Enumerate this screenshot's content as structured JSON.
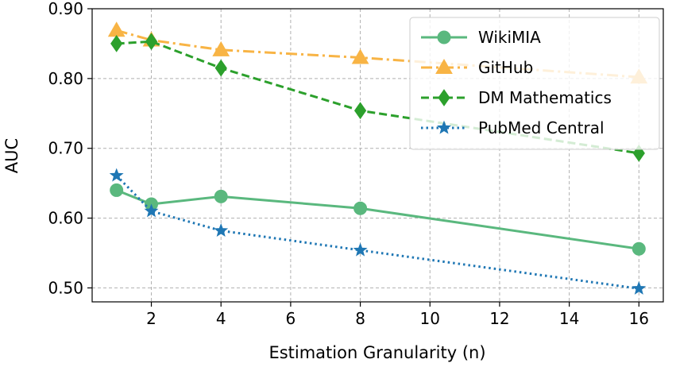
{
  "chart_data": {
    "type": "line",
    "title": "",
    "xlabel": "Estimation Granularity (n)",
    "ylabel": "AUC",
    "xlim": [
      0.3,
      16.7
    ],
    "ylim": [
      0.48,
      0.9
    ],
    "xticks": [
      2,
      4,
      6,
      8,
      10,
      12,
      14,
      16
    ],
    "xtick_labels": [
      "2",
      "4",
      "6",
      "8",
      "10",
      "12",
      "14",
      "16"
    ],
    "yticks": [
      0.5,
      0.6,
      0.7,
      0.8,
      0.9
    ],
    "ytick_labels": [
      "0.50",
      "0.60",
      "0.70",
      "0.80",
      "0.90"
    ],
    "grid": true,
    "legend_position": "top-right",
    "x": [
      1,
      2,
      4,
      8,
      16
    ],
    "series": [
      {
        "name": "WikiMIA",
        "values": [
          0.64,
          0.62,
          0.631,
          0.614,
          0.556
        ],
        "color": "#5ab87e",
        "marker": "circle",
        "linestyle": "solid"
      },
      {
        "name": "GitHub",
        "values": [
          0.869,
          0.855,
          0.841,
          0.83,
          0.802
        ],
        "color": "#f8b445",
        "marker": "triangle",
        "linestyle": "dashdot"
      },
      {
        "name": "DM Mathematics",
        "values": [
          0.85,
          0.853,
          0.815,
          0.754,
          0.693
        ],
        "color": "#2ca02c",
        "marker": "diamond",
        "linestyle": "dashed"
      },
      {
        "name": "PubMed Central",
        "values": [
          0.661,
          0.61,
          0.582,
          0.554,
          0.499
        ],
        "color": "#1f77b4",
        "marker": "star",
        "linestyle": "dotted"
      }
    ]
  }
}
